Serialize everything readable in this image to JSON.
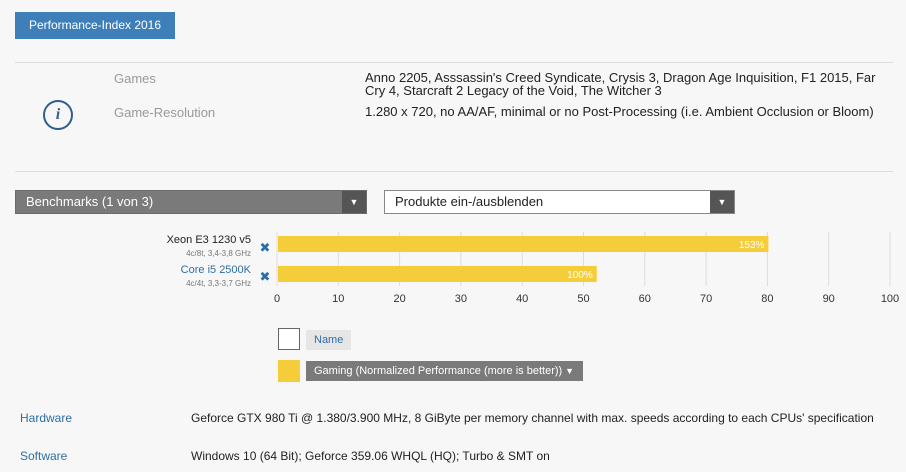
{
  "tab": {
    "label": "Performance-Index 2016"
  },
  "info": {
    "games_label": "Games",
    "games_value": "Anno 2205, Asssassin's Creed Syndicate, Crysis 3, Dragon Age Inquisition, F1 2015, Far Cry 4, Starcraft 2 Legacy of the Void, The Witcher 3",
    "resolution_label": "Game-Resolution",
    "resolution_value": "1.280 x 720, no AA/AF, minimal or no Post-Processing (i.e. Ambient Occlusion or Bloom)",
    "icon": "info-icon"
  },
  "benchmark_dropdown": {
    "label": "Benchmarks (1 von 3)"
  },
  "products_dropdown": {
    "label": "Produkte ein-/ausblenden"
  },
  "cpus": [
    {
      "name": "Xeon E3 1230 v5",
      "specs": "4c/8t, 3,4-3,8 GHz",
      "linked": false
    },
    {
      "name": "Core i5 2500K",
      "specs": "4c/4t, 3,3-3,7 GHz",
      "linked": true
    }
  ],
  "chart_data": {
    "type": "bar",
    "orientation": "horizontal",
    "categories": [
      "Xeon E3 1230 v5",
      "Core i5 2500K"
    ],
    "values": [
      80,
      52
    ],
    "data_labels": [
      "153%",
      "100%"
    ],
    "xlim": [
      0,
      100
    ],
    "xticks": [
      0,
      10,
      20,
      30,
      40,
      50,
      60,
      70,
      80,
      90,
      100
    ],
    "grid": true,
    "bar_color": "#f5cd3a"
  },
  "legend": {
    "name_label": "Name",
    "metric_label": "Gaming (Normalized Performance (more is better))"
  },
  "meta": {
    "hardware_label": "Hardware",
    "hardware_value": "Geforce GTX 980 Ti @ 1.380/3.900 MHz, 8 GiByte per memory channel with max. speeds according to each CPUs' specification",
    "software_label": "Software",
    "software_value": "Windows 10 (64 Bit); Geforce 359.06 WHQL (HQ); Turbo & SMT on"
  },
  "colors": {
    "accent": "#3e7fb9",
    "link": "#2e6ea6",
    "bar": "#f5cd3a"
  }
}
